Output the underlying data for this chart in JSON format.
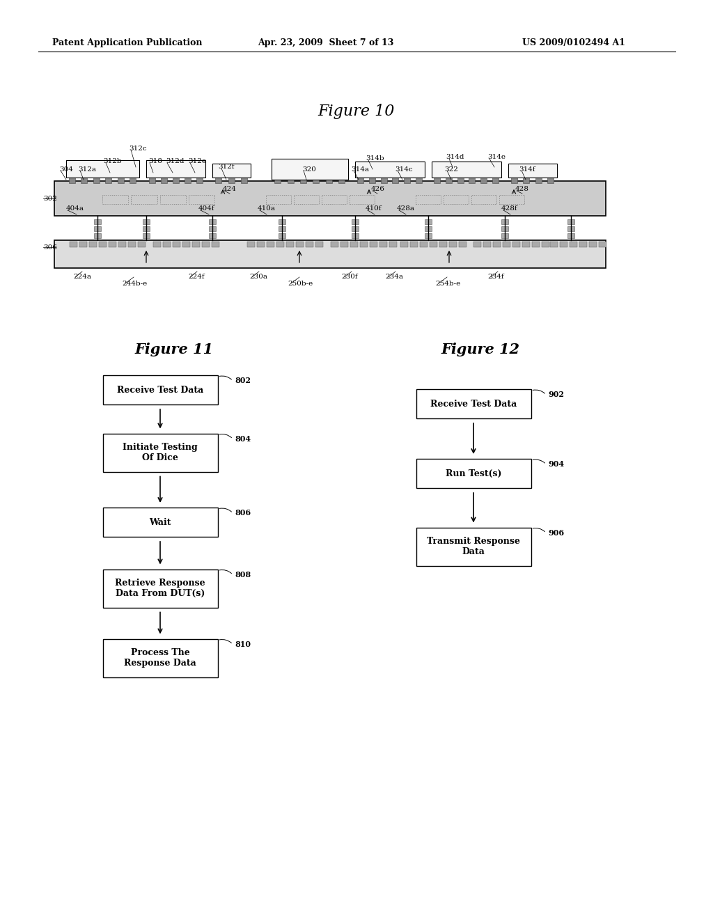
{
  "bg_color": "#ffffff",
  "header_text": "Patent Application Publication",
  "header_date": "Apr. 23, 2009  Sheet 7 of 13",
  "header_patent": "US 2009/0102494 A1",
  "fig10_title": "Figure 10",
  "fig11_title": "Figure 11",
  "fig12_title": "Figure 12",
  "fig11_boxes": [
    {
      "label": "802",
      "text": "Receive Test Data"
    },
    {
      "label": "804",
      "text": "Initiate Testing\nOf Dice"
    },
    {
      "label": "806",
      "text": "Wait"
    },
    {
      "label": "808",
      "text": "Retrieve Response\nData From DUT(s)"
    },
    {
      "label": "810",
      "text": "Process The\nResponse Data"
    }
  ],
  "fig12_boxes": [
    {
      "label": "902",
      "text": "Receive Test Data"
    },
    {
      "label": "904",
      "text": "Run Test(s)"
    },
    {
      "label": "906",
      "text": "Transmit Response\nData"
    }
  ]
}
